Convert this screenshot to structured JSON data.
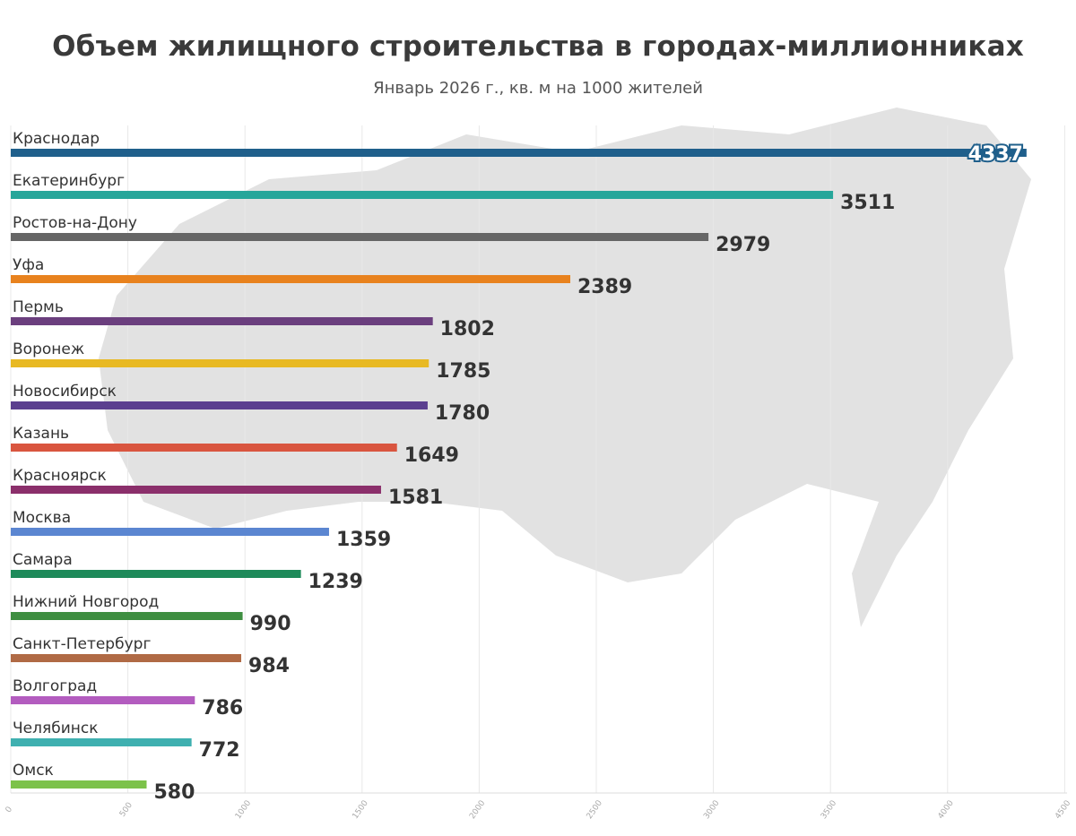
{
  "title": "Объем жилищного строительства в городах-миллионниках",
  "subtitle": "Январь 2026 г., кв. м на 1000 жителей",
  "chart_data": {
    "type": "bar",
    "orientation": "horizontal",
    "title": "Объем жилищного строительства в городах-миллионниках",
    "subtitle": "Январь 2026 г., кв. м на 1000 жителей",
    "categories": [
      "Краснодар",
      "Екатеринбург",
      "Ростов-на-Дону",
      "Уфа",
      "Пермь",
      "Воронеж",
      "Новосибирск",
      "Казань",
      "Красноярск",
      "Москва",
      "Самара",
      "Нижний Новгород",
      "Санкт-Петербург",
      "Волгоград",
      "Челябинск",
      "Омск"
    ],
    "values": [
      4337,
      3511,
      2979,
      2389,
      1802,
      1785,
      1780,
      1649,
      1581,
      1359,
      1239,
      990,
      984,
      786,
      772,
      580
    ],
    "colors": [
      "#1f5f8b",
      "#26a69a",
      "#666666",
      "#e8821e",
      "#6b3f7e",
      "#e8b923",
      "#5b3f8f",
      "#d9553f",
      "#8b2f6b",
      "#5b86d1",
      "#1e8a5a",
      "#3e8e41",
      "#b06a45",
      "#b35cbf",
      "#3fb0b0",
      "#7cc24a"
    ],
    "xticks": [
      0,
      500,
      1000,
      1500,
      2000,
      2500,
      3000,
      3500,
      4000,
      4500
    ],
    "xlim": [
      0,
      4500
    ],
    "grid": true,
    "legend": "none",
    "background": "map of Russia"
  }
}
